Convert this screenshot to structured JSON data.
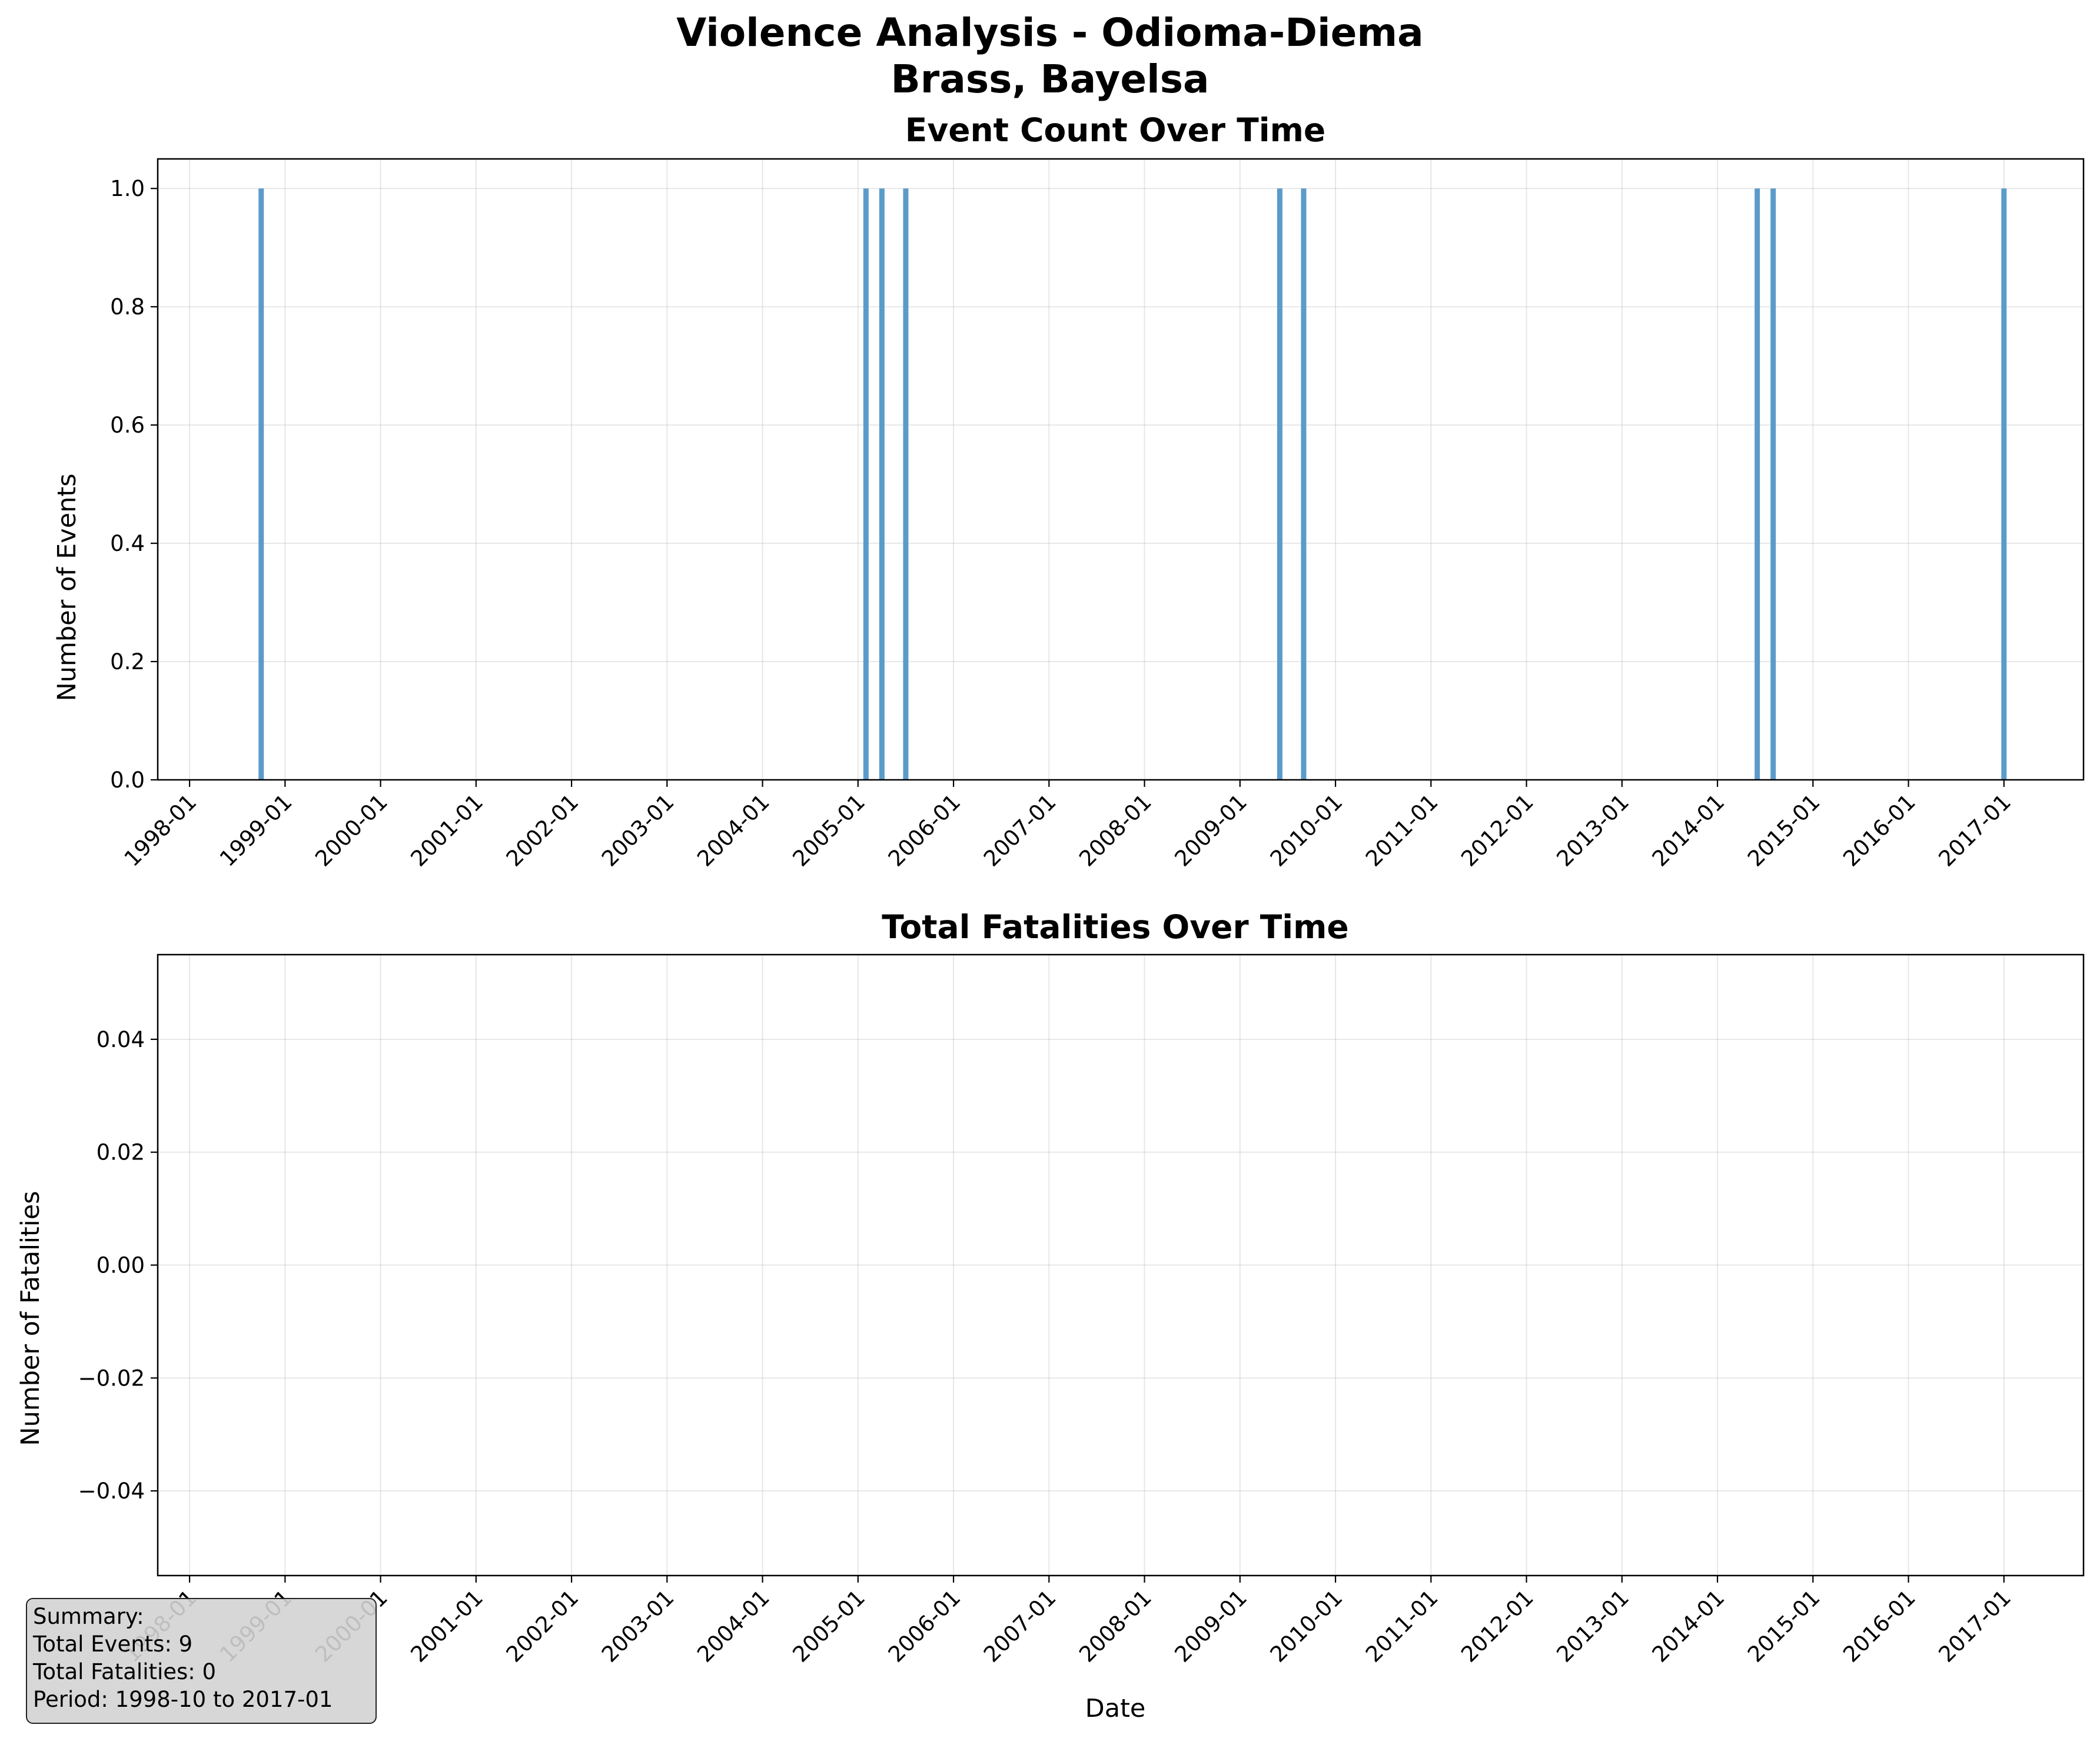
{
  "figure": {
    "title_line1": "Violence Analysis - Odioma-Diema",
    "title_line2": "Brass, Bayelsa"
  },
  "summary": {
    "heading": "Summary:",
    "total_events": "Total Events: 9",
    "total_fatalities": "Total Fatalities: 0",
    "period": "Period: 1998-10 to 2017-01"
  },
  "colors": {
    "bar": "#5b9bc8"
  },
  "chart_data": [
    {
      "type": "bar",
      "title": "Event Count Over Time",
      "xlabel": "",
      "ylabel": "Number of Events",
      "x_tick_labels": [
        "1998-01",
        "1999-01",
        "2000-01",
        "2001-01",
        "2002-01",
        "2003-01",
        "2004-01",
        "2005-01",
        "2006-01",
        "2007-01",
        "2008-01",
        "2009-01",
        "2010-01",
        "2011-01",
        "2012-01",
        "2013-01",
        "2014-01",
        "2015-01",
        "2016-01",
        "2017-01"
      ],
      "y_ticks": [
        "0.0",
        "0.2",
        "0.4",
        "0.6",
        "0.8",
        "1.0"
      ],
      "ylim": [
        0,
        1.05
      ],
      "xlim": [
        "1997-09",
        "2017-11"
      ],
      "grid": true,
      "x": [
        "1998-10",
        "2005-02",
        "2005-04",
        "2005-07",
        "2009-06",
        "2009-09",
        "2014-06",
        "2014-08",
        "2017-01"
      ],
      "values": [
        1,
        1,
        1,
        1,
        1,
        1,
        1,
        1,
        1
      ]
    },
    {
      "type": "line",
      "title": "Total Fatalities Over Time",
      "xlabel": "Date",
      "ylabel": "Number of Fatalities",
      "x_tick_labels": [
        "1998-01",
        "1999-01",
        "2000-01",
        "2001-01",
        "2002-01",
        "2003-01",
        "2004-01",
        "2005-01",
        "2006-01",
        "2007-01",
        "2008-01",
        "2009-01",
        "2010-01",
        "2011-01",
        "2012-01",
        "2013-01",
        "2014-01",
        "2015-01",
        "2016-01",
        "2017-01"
      ],
      "y_ticks": [
        "0.04",
        "0.02",
        "0.00",
        "−0.02",
        "−0.04"
      ],
      "ylim": [
        -0.055,
        0.055
      ],
      "xlim": [
        "1997-09",
        "2017-11"
      ],
      "grid": true,
      "x": [],
      "values": []
    }
  ]
}
